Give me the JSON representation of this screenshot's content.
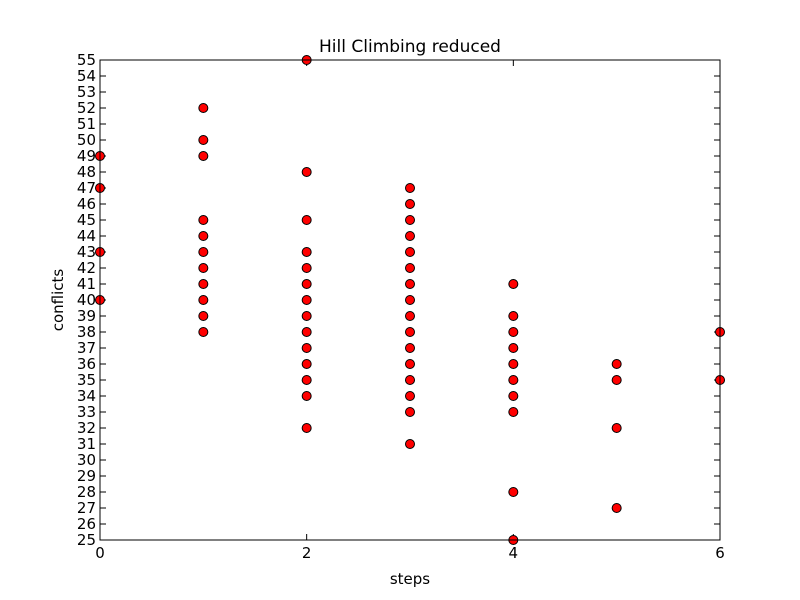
{
  "chart_data": {
    "type": "scatter",
    "title": "Hill Climbing reduced",
    "xlabel": "steps",
    "ylabel": "conflicts",
    "xlim": [
      0,
      6
    ],
    "ylim": [
      25,
      55
    ],
    "xticks": [
      0,
      2,
      4,
      6
    ],
    "yticks": [
      25,
      26,
      27,
      28,
      29,
      30,
      31,
      32,
      33,
      34,
      35,
      36,
      37,
      38,
      39,
      40,
      41,
      42,
      43,
      44,
      45,
      46,
      47,
      48,
      49,
      50,
      51,
      52,
      53,
      54,
      55
    ],
    "grid": false,
    "marker_color": "#ff0000",
    "marker_edge_color": "#000000",
    "series": [
      {
        "points": [
          [
            0,
            49
          ],
          [
            0,
            47
          ],
          [
            0,
            43
          ],
          [
            0,
            40
          ],
          [
            1,
            52
          ],
          [
            1,
            50
          ],
          [
            1,
            49
          ],
          [
            1,
            45
          ],
          [
            1,
            44
          ],
          [
            1,
            43
          ],
          [
            1,
            42
          ],
          [
            1,
            41
          ],
          [
            1,
            40
          ],
          [
            1,
            39
          ],
          [
            1,
            38
          ],
          [
            2,
            55
          ],
          [
            2,
            48
          ],
          [
            2,
            45
          ],
          [
            2,
            43
          ],
          [
            2,
            42
          ],
          [
            2,
            41
          ],
          [
            2,
            40
          ],
          [
            2,
            39
          ],
          [
            2,
            38
          ],
          [
            2,
            37
          ],
          [
            2,
            36
          ],
          [
            2,
            35
          ],
          [
            2,
            34
          ],
          [
            2,
            32
          ],
          [
            3,
            47
          ],
          [
            3,
            46
          ],
          [
            3,
            45
          ],
          [
            3,
            44
          ],
          [
            3,
            43
          ],
          [
            3,
            42
          ],
          [
            3,
            41
          ],
          [
            3,
            40
          ],
          [
            3,
            39
          ],
          [
            3,
            38
          ],
          [
            3,
            37
          ],
          [
            3,
            36
          ],
          [
            3,
            35
          ],
          [
            3,
            34
          ],
          [
            3,
            33
          ],
          [
            3,
            31
          ],
          [
            4,
            41
          ],
          [
            4,
            39
          ],
          [
            4,
            38
          ],
          [
            4,
            37
          ],
          [
            4,
            36
          ],
          [
            4,
            35
          ],
          [
            4,
            34
          ],
          [
            4,
            33
          ],
          [
            4,
            28
          ],
          [
            4,
            25
          ],
          [
            5,
            36
          ],
          [
            5,
            35
          ],
          [
            5,
            32
          ],
          [
            5,
            27
          ],
          [
            6,
            38
          ],
          [
            6,
            35
          ]
        ]
      }
    ]
  }
}
